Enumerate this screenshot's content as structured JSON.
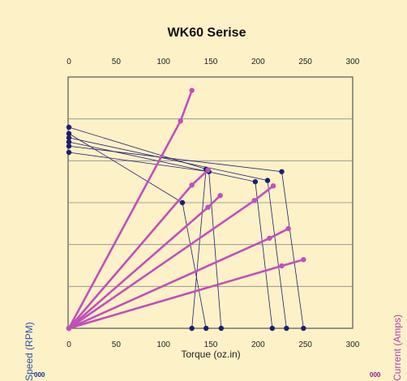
{
  "chart_data": {
    "type": "line",
    "title": "WK60 Serise",
    "xlabel": "Torque (oz.in)",
    "ylabel_left": "Speed (RPM)",
    "ylabel_right": "Current (Amps)",
    "y_left_tick_partial": "000",
    "y_right_tick_partial": "000",
    "xlim": [
      0,
      300
    ],
    "x_ticks": [
      0,
      50,
      100,
      150,
      200,
      250,
      300
    ],
    "grid": true,
    "colors": {
      "speed": "#1c1f6e",
      "current": "#c050b8",
      "background": "#fdf1c8"
    },
    "speed_series": [
      {
        "x": [
          0,
          145,
          130
        ],
        "y": [
          4800,
          3800,
          0
        ]
      },
      {
        "x": [
          0,
          120,
          145
        ],
        "y": [
          4650,
          3000,
          0
        ]
      },
      {
        "x": [
          0,
          210,
          230
        ],
        "y": [
          4550,
          3530,
          0
        ]
      },
      {
        "x": [
          0,
          197,
          215
        ],
        "y": [
          4450,
          3500,
          0
        ]
      },
      {
        "x": [
          0,
          225,
          248
        ],
        "y": [
          4350,
          3740,
          0
        ]
      },
      {
        "x": [
          0,
          148,
          161
        ],
        "y": [
          4200,
          3740,
          0
        ]
      }
    ],
    "current_series": [
      {
        "x": [
          0,
          118,
          130
        ],
        "y": [
          0,
          4950,
          5680
        ]
      },
      {
        "x": [
          0,
          130,
          147
        ],
        "y": [
          0,
          3420,
          3780
        ]
      },
      {
        "x": [
          0,
          147,
          160
        ],
        "y": [
          0,
          2890,
          3170
        ]
      },
      {
        "x": [
          0,
          196,
          216
        ],
        "y": [
          0,
          3050,
          3400
        ]
      },
      {
        "x": [
          0,
          212,
          232
        ],
        "y": [
          0,
          2150,
          2380
        ]
      },
      {
        "x": [
          0,
          225,
          248
        ],
        "y": [
          0,
          1490,
          1640
        ]
      }
    ]
  }
}
